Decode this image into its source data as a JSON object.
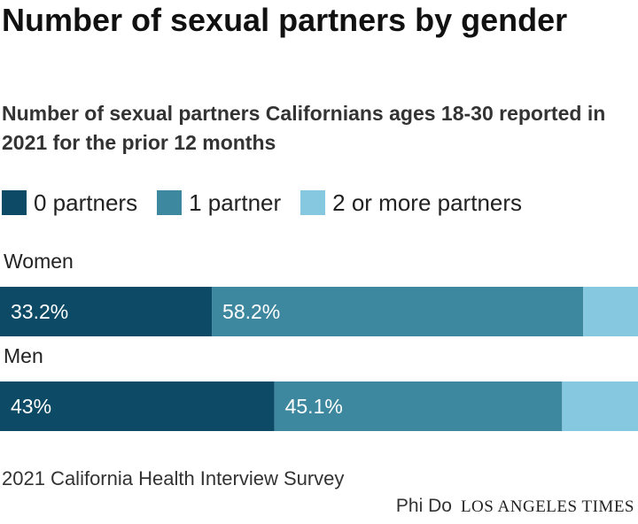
{
  "chart_data": {
    "type": "bar",
    "orientation": "horizontal",
    "stacked": true,
    "title": "Number of sexual partners by gender",
    "subtitle": "Number of sexual partners Californians ages 18-30 reported in 2021 for the prior 12 months",
    "categories": [
      "Women",
      "Men"
    ],
    "series": [
      {
        "name": "0 partners",
        "color": "#0c4a66",
        "values": [
          33.2,
          43
        ],
        "labels": [
          "33.2%",
          "43%"
        ]
      },
      {
        "name": "1 partner",
        "color": "#3d879f",
        "values": [
          58.2,
          45.1
        ],
        "labels": [
          "58.2%",
          "45.1%"
        ]
      },
      {
        "name": "2 or more partners",
        "color": "#86c8df",
        "values": [
          8.6,
          11.9
        ],
        "labels": [
          "",
          ""
        ]
      }
    ],
    "xlim": [
      0,
      100
    ],
    "grid": false,
    "legend_position": "top-left",
    "source": "2021 California Health Interview Survey",
    "credit": "Phi Do",
    "publisher": "LOS ANGELES TIMES"
  }
}
